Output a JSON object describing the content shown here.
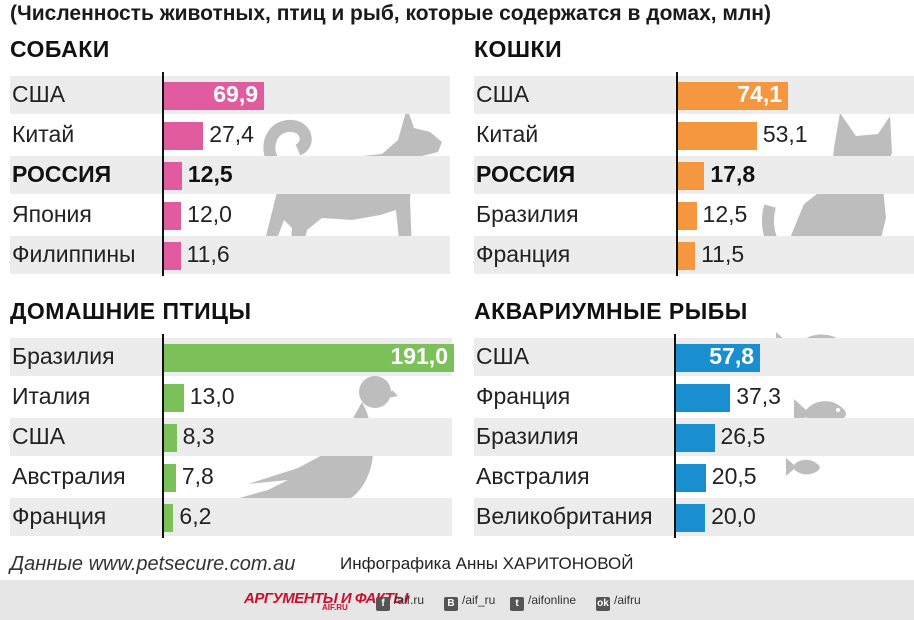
{
  "title": "(Численность животных, птиц и рыб, которые содержатся в домах, млн)",
  "source": "Данные www.petsecure.com.au",
  "credit": "Инфографика Анны ХАРИТОНОВОЙ",
  "footer": {
    "brand": "АРГУМЕНТЫ И ФАКТЫ",
    "brand_sub": "AIF.RU",
    "social": [
      {
        "icon": "f",
        "name": "facebook-icon",
        "text": "/aif.ru"
      },
      {
        "icon": "B",
        "name": "vk-icon",
        "text": "/aif_ru"
      },
      {
        "icon": "t",
        "name": "twitter-icon",
        "text": "/aifonline"
      },
      {
        "icon": "ok",
        "name": "odnoklassniki-icon",
        "text": "/aifru"
      }
    ]
  },
  "chart_data": [
    {
      "type": "bar",
      "title": "СОБАКИ",
      "color": "#e05c9e",
      "icon": "dog-silhouette",
      "categories": [
        "США",
        "Китай",
        "РОССИЯ",
        "Япония",
        "Филиппины"
      ],
      "value_labels": [
        "69,9",
        "27,4",
        "12,5",
        "12,0",
        "11,6"
      ],
      "values": [
        69.9,
        27.4,
        12.5,
        12.0,
        11.6
      ],
      "highlight": "РОССИЯ"
    },
    {
      "type": "bar",
      "title": "КОШКИ",
      "color": "#f5973f",
      "icon": "cat-silhouette",
      "categories": [
        "США",
        "Китай",
        "РОССИЯ",
        "Бразилия",
        "Франция"
      ],
      "value_labels": [
        "74,1",
        "53,1",
        "17,8",
        "12,5",
        "11,5"
      ],
      "values": [
        74.1,
        53.1,
        17.8,
        12.5,
        11.5
      ],
      "highlight": "РОССИЯ"
    },
    {
      "type": "bar",
      "title": "ДОМАШНИЕ ПТИЦЫ",
      "color": "#7cc05a",
      "icon": "pigeon-silhouette",
      "categories": [
        "Бразилия",
        "Италия",
        "США",
        "Австралия",
        "Франция"
      ],
      "value_labels": [
        "191,0",
        "13,0",
        "8,3",
        "7,8",
        "6,2"
      ],
      "values": [
        191.0,
        13.0,
        8.3,
        7.8,
        6.2
      ],
      "highlight": ""
    },
    {
      "type": "bar",
      "title": "АКВАРИУМНЫЕ РЫБЫ",
      "color": "#1a8fd0",
      "icon": "fish-silhouette",
      "categories": [
        "США",
        "Франция",
        "Бразилия",
        "Австралия",
        "Великобритания"
      ],
      "value_labels": [
        "57,8",
        "37,3",
        "26,5",
        "20,5",
        "20,0"
      ],
      "values": [
        57.8,
        37.3,
        26.5,
        20.5,
        20.0
      ],
      "highlight": ""
    }
  ]
}
